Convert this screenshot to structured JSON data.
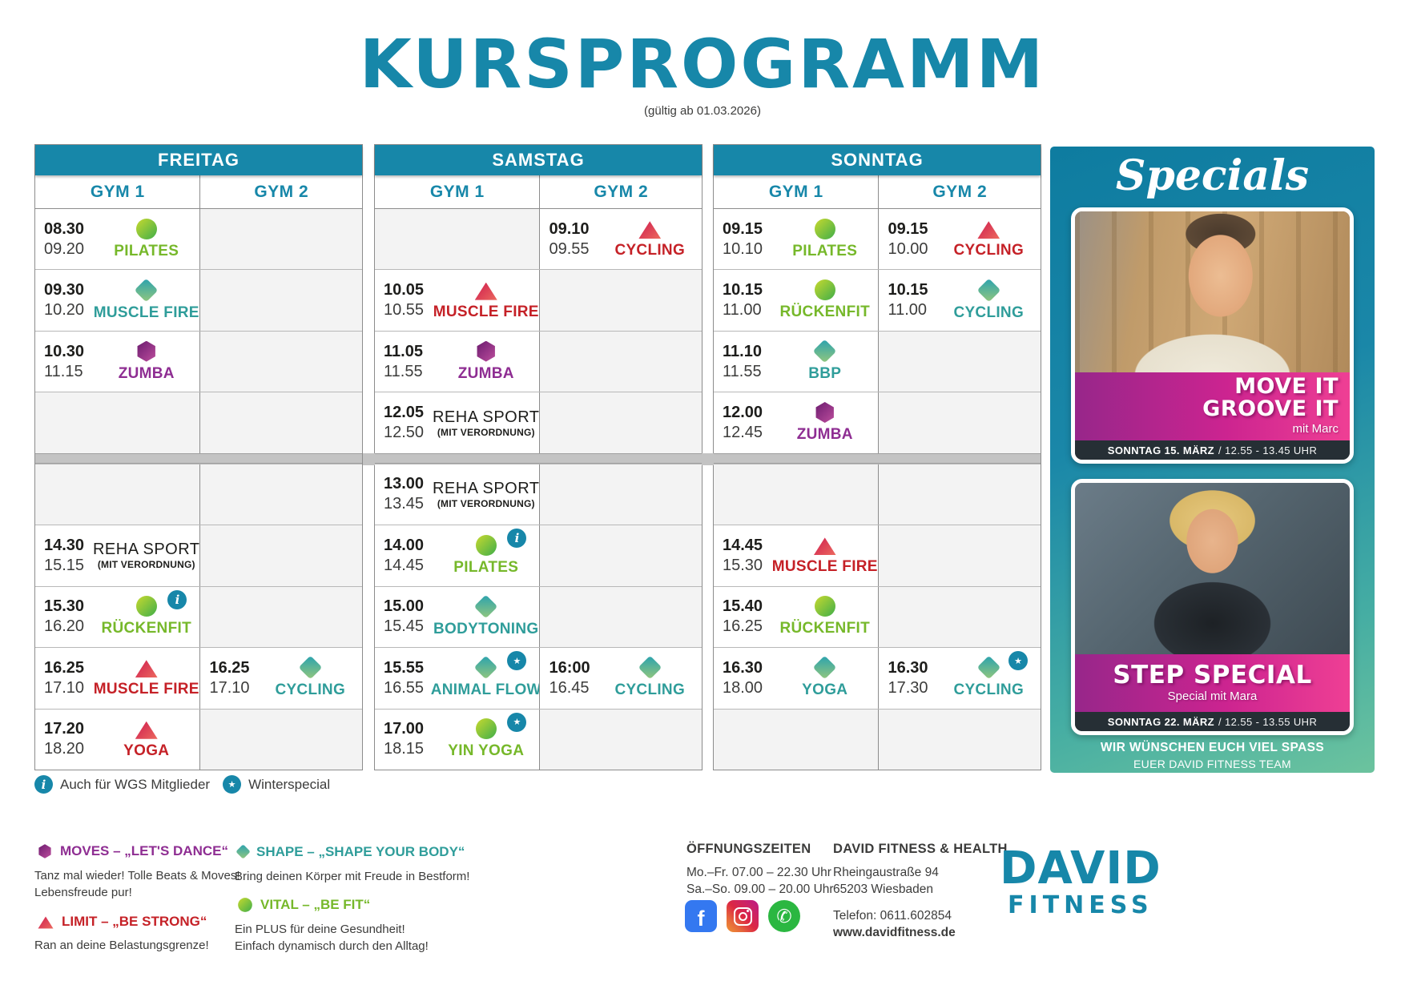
{
  "title": "KURSPROGRAMM",
  "subtitle": "(gültig ab 01.03.2026)",
  "accent_teal": "#1787a9",
  "banner_magenta": "#cc2490",
  "category_colors": {
    "vital": "#76b82a",
    "shape": "#2f9d9a",
    "moves": "#8e2d92",
    "limit": "#c52127",
    "reha": "#1d1d1b"
  },
  "days": [
    {
      "name": "FREITAG",
      "columns": [
        "GYM 1",
        "GYM 2"
      ],
      "rows": [
        [
          {
            "start": "08.30",
            "end": "09.20",
            "name": "PILATES",
            "cat": "vital"
          },
          null
        ],
        [
          {
            "start": "09.30",
            "end": "10.20",
            "name": "MUSCLE FIRE",
            "cat": "shape"
          },
          null
        ],
        [
          {
            "start": "10.30",
            "end": "11.15",
            "name": "ZUMBA",
            "cat": "moves"
          },
          null
        ],
        [
          null,
          null
        ],
        [
          null,
          null
        ],
        [
          {
            "start": "14.30",
            "end": "15.15",
            "name": "REHA SPORT",
            "sub": "(MIT VERORDNUNG)",
            "cat": "reha"
          },
          null
        ],
        [
          {
            "start": "15.30",
            "end": "16.20",
            "name": "RÜCKENFIT",
            "cat": "vital",
            "badge": "info"
          },
          null
        ],
        [
          {
            "start": "16.25",
            "end": "17.10",
            "name": "MUSCLE FIRE",
            "cat": "limit"
          },
          {
            "start": "16.25",
            "end": "17.10",
            "name": "CYCLING",
            "cat": "shape"
          }
        ],
        [
          {
            "start": "17.20",
            "end": "18.20",
            "name": "YOGA",
            "cat": "limit"
          },
          null
        ]
      ]
    },
    {
      "name": "SAMSTAG",
      "columns": [
        "GYM 1",
        "GYM 2"
      ],
      "rows": [
        [
          null,
          {
            "start": "09.10",
            "end": "09.55",
            "name": "CYCLING",
            "cat": "limit"
          }
        ],
        [
          {
            "start": "10.05",
            "end": "10.55",
            "name": "MUSCLE FIRE",
            "cat": "limit"
          },
          null
        ],
        [
          {
            "start": "11.05",
            "end": "11.55",
            "name": "ZUMBA",
            "cat": "moves"
          },
          null
        ],
        [
          {
            "start": "12.05",
            "end": "12.50",
            "name": "REHA SPORT",
            "sub": "(MIT VERORDNUNG)",
            "cat": "reha"
          },
          null
        ],
        [
          {
            "start": "13.00",
            "end": "13.45",
            "name": "REHA SPORT",
            "sub": "(MIT VERORDNUNG)",
            "cat": "reha"
          },
          null
        ],
        [
          {
            "start": "14.00",
            "end": "14.45",
            "name": "PILATES",
            "cat": "vital",
            "badge": "info"
          },
          null
        ],
        [
          {
            "start": "15.00",
            "end": "15.45",
            "name": "BODYTONING",
            "cat": "shape"
          },
          null
        ],
        [
          {
            "start": "15.55",
            "end": "16.55",
            "name": "ANIMAL FLOW",
            "cat": "shape",
            "badge": "star"
          },
          {
            "start": "16:00",
            "end": "16.45",
            "name": "CYCLING",
            "cat": "shape"
          }
        ],
        [
          {
            "start": "17.00",
            "end": "18.15",
            "name": "YIN YOGA",
            "cat": "vital",
            "badge": "star"
          },
          null
        ]
      ]
    },
    {
      "name": "SONNTAG",
      "columns": [
        "GYM 1",
        "GYM 2"
      ],
      "rows": [
        [
          {
            "start": "09.15",
            "end": "10.10",
            "name": "PILATES",
            "cat": "vital"
          },
          {
            "start": "09.15",
            "end": "10.00",
            "name": "CYCLING",
            "cat": "limit"
          }
        ],
        [
          {
            "start": "10.15",
            "end": "11.00",
            "name": "RÜCKENFIT",
            "cat": "vital"
          },
          {
            "start": "10.15",
            "end": "11.00",
            "name": "CYCLING",
            "cat": "shape"
          }
        ],
        [
          {
            "start": "11.10",
            "end": "11.55",
            "name": "BBP",
            "cat": "shape"
          },
          null
        ],
        [
          {
            "start": "12.00",
            "end": "12.45",
            "name": "ZUMBA",
            "cat": "moves"
          },
          null
        ],
        [
          null,
          null
        ],
        [
          {
            "start": "14.45",
            "end": "15.30",
            "name": "MUSCLE FIRE",
            "cat": "limit"
          },
          null
        ],
        [
          {
            "start": "15.40",
            "end": "16.25",
            "name": "RÜCKENFIT",
            "cat": "vital"
          },
          null
        ],
        [
          {
            "start": "16.30",
            "end": "18.00",
            "name": "YOGA",
            "cat": "shape"
          },
          {
            "start": "16.30",
            "end": "17.30",
            "name": "CYCLING",
            "cat": "shape",
            "badge": "star"
          }
        ],
        [
          null,
          null
        ]
      ]
    }
  ],
  "legend": {
    "items": [
      {
        "icon": "info",
        "label": "Auch für WGS Mitglieder"
      },
      {
        "icon": "star",
        "label": "Winterspecial"
      }
    ]
  },
  "specials": {
    "title": "Specials",
    "cards": [
      {
        "heading_lines": [
          "MOVE IT",
          "GROOVE IT"
        ],
        "sub": "mit Marc",
        "date": "SONNTAG 15. MÄRZ",
        "time": "/ 12.55 - 13.45 UHR"
      },
      {
        "heading_lines": [
          "STEP SPECIAL"
        ],
        "sub": "Special mit Mara",
        "date": "SONNTAG 22. MÄRZ",
        "time": "/ 12.55 - 13.55 UHR"
      }
    ],
    "footer_line1": "WIR WÜNSCHEN EUCH VIEL SPASS",
    "footer_line2": "EUER DAVID FITNESS TEAM"
  },
  "categories": [
    {
      "key": "moves",
      "col": 1,
      "title": "MOVES – „LET'S DANCE“",
      "lines": [
        "Tanz mal wieder! Tolle Beats & Moves!",
        "Lebensfreude pur!"
      ]
    },
    {
      "key": "limit",
      "col": 1,
      "title": "LIMIT – „BE STRONG“",
      "lines": [
        "Ran an deine Belastungsgrenze!"
      ]
    },
    {
      "key": "shape",
      "col": 2,
      "title": "SHAPE – „SHAPE YOUR BODY“",
      "lines": [
        "Bring deinen Körper mit Freude in Bestform!"
      ]
    },
    {
      "key": "vital",
      "col": 2,
      "title": "VITAL – „BE FIT“",
      "lines": [
        "Ein PLUS für deine Gesundheit!",
        "Einfach dynamisch durch den Alltag!"
      ]
    }
  ],
  "contact": {
    "hours_title": "ÖFFNUNGSZEITEN",
    "hours": [
      "Mo.–Fr. 07.00 – 22.30 Uhr",
      "Sa.–So. 09.00 – 20.00 Uhr"
    ],
    "company": "DAVID FITNESS & HEALTH",
    "address_lines": [
      "Rheingaustraße 94",
      "65203 Wiesbaden"
    ],
    "phone": "Telefon: 0611.602854",
    "website": "www.davidfitness.de"
  },
  "logo": {
    "line1": "DAVID",
    "line2": "FITNESS"
  },
  "social": [
    "facebook",
    "instagram",
    "whatsapp"
  ]
}
